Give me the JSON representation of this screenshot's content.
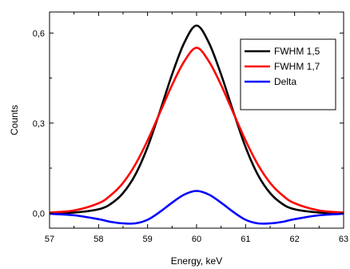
{
  "chart_data": {
    "type": "line",
    "title": "",
    "xlabel": "Energy, keV",
    "ylabel": "Counts",
    "xlim": [
      57,
      63
    ],
    "ylim": [
      -0.05,
      0.67
    ],
    "xticks": [
      57,
      58,
      59,
      60,
      61,
      62,
      63
    ],
    "xtick_labels": [
      "57",
      "58",
      "59",
      "60",
      "61",
      "62",
      "63"
    ],
    "yticks": [
      0,
      0.3,
      0.6
    ],
    "ytick_labels": [
      "0,0",
      "0,3",
      "0,6"
    ],
    "grid": false,
    "legend_position": "top-right",
    "series": [
      {
        "name": "FWHM 1,5",
        "color": "#000000",
        "x": [
          57.0,
          57.5,
          58.0,
          58.25,
          58.5,
          58.75,
          59.0,
          59.25,
          59.5,
          59.75,
          60.0,
          60.25,
          60.5,
          60.75,
          61.0,
          61.25,
          61.5,
          61.75,
          62.0,
          62.5,
          63.0
        ],
        "y": [
          0.0,
          0.002,
          0.013,
          0.031,
          0.067,
          0.128,
          0.22,
          0.338,
          0.462,
          0.568,
          0.625,
          0.568,
          0.462,
          0.338,
          0.22,
          0.128,
          0.067,
          0.031,
          0.013,
          0.002,
          0.0
        ]
      },
      {
        "name": "FWHM 1,7",
        "color": "#ff0000",
        "x": [
          57.0,
          57.5,
          58.0,
          58.25,
          58.5,
          58.75,
          59.0,
          59.25,
          59.5,
          59.75,
          60.0,
          60.25,
          60.5,
          60.75,
          61.0,
          61.25,
          61.5,
          61.75,
          62.0,
          62.5,
          63.0
        ],
        "y": [
          0.002,
          0.009,
          0.033,
          0.06,
          0.101,
          0.162,
          0.242,
          0.334,
          0.427,
          0.506,
          0.551,
          0.506,
          0.427,
          0.334,
          0.242,
          0.162,
          0.101,
          0.06,
          0.033,
          0.009,
          0.002
        ]
      },
      {
        "name": "Delta",
        "color": "#0000ff",
        "x": [
          57.0,
          57.5,
          58.0,
          58.25,
          58.5,
          58.75,
          59.0,
          59.25,
          59.5,
          59.75,
          60.0,
          60.25,
          60.5,
          60.75,
          61.0,
          61.25,
          61.5,
          61.75,
          62.0,
          62.5,
          63.0
        ],
        "y": [
          -0.002,
          -0.007,
          -0.02,
          -0.029,
          -0.034,
          -0.034,
          -0.022,
          0.004,
          0.035,
          0.062,
          0.074,
          0.062,
          0.035,
          0.004,
          -0.022,
          -0.034,
          -0.034,
          -0.029,
          -0.02,
          -0.007,
          -0.002
        ]
      }
    ]
  }
}
